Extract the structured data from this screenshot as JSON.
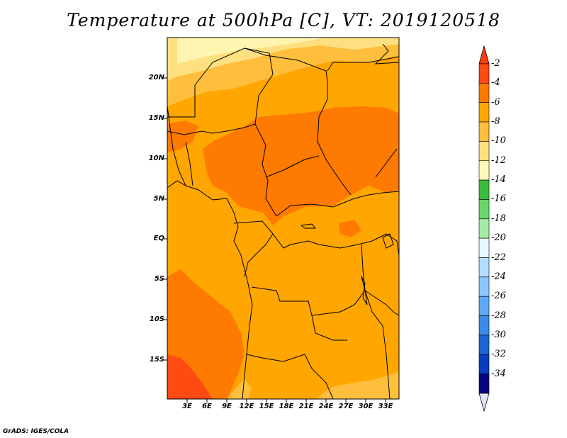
{
  "title": "Temperature at 500hPa [C], VT: 2019120518",
  "credit": "GrADS: IGES/COLA",
  "lat_labels": [
    "20N",
    "15N",
    "10N",
    "5N",
    "EQ",
    "5S",
    "10S",
    "15S"
  ],
  "lon_labels": [
    "3E",
    "6E",
    "9E",
    "12E",
    "15E",
    "18E",
    "21E",
    "24E",
    "27E",
    "30E",
    "33E"
  ],
  "colorbar": {
    "labels": [
      "-2",
      "-4",
      "-6",
      "-8",
      "-10",
      "-12",
      "-14",
      "-16",
      "-18",
      "-20",
      "-22",
      "-24",
      "-26",
      "-28",
      "-30",
      "-32",
      "-34"
    ],
    "colors": [
      "#ff4a12",
      "#ff7a00",
      "#ffa600",
      "#ffbf3c",
      "#ffe080",
      "#fff8b8",
      "#3cbc3c",
      "#6cd66c",
      "#a6e8a6",
      "#e6f8ff",
      "#b4dcff",
      "#8cc6ff",
      "#5fa8f5",
      "#3c8ae6",
      "#1e64d2",
      "#0a3cbe",
      "#06067a",
      "#e0e0f8"
    ],
    "top_arrow_color": "#ff3c0c",
    "bottom_arrow_color": "#e2e2f8"
  },
  "map": {
    "projection": "lat-lon",
    "lon_range": [
      0,
      35
    ],
    "lat_range": [
      -20,
      25
    ],
    "field_colors": {
      "dominant": "#ffa600",
      "warm": "#ff7a00",
      "warmest": "#ff4a12",
      "cool": "#ffbf3c",
      "coolest": "#ffe080"
    }
  }
}
